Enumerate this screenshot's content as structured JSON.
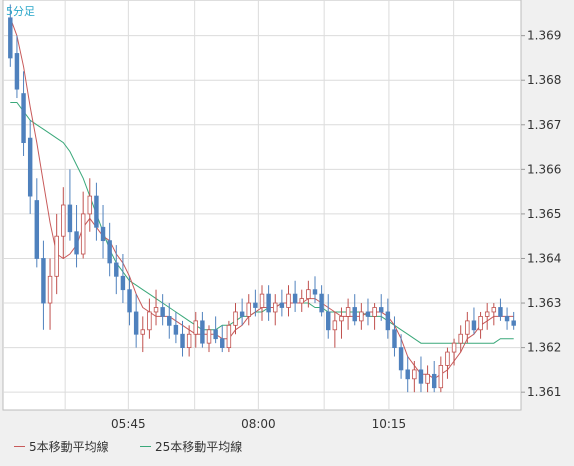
{
  "chart_data": {
    "type": "candlestick",
    "timeframe_label": "5分足",
    "y_ticks": [
      "1.369",
      "1.368",
      "1.367",
      "1.366",
      "1.365",
      "1.364",
      "1.363",
      "1.362",
      "1.361"
    ],
    "y_range": [
      1.3606,
      1.3698
    ],
    "x_ticks": [
      "05:45",
      "08:00",
      "10:15"
    ],
    "grid": true,
    "legend": [
      {
        "label": "5本移動平均線",
        "color": "#c85a5a"
      },
      {
        "label": "25本移動平均線",
        "color": "#3aa87a"
      }
    ],
    "colors": {
      "up": "#ffffff",
      "up_border": "#c0504d",
      "down": "#4f81bd",
      "ma5": "#c85a5a",
      "ma25": "#3aa87a",
      "label": "#2aa7c9"
    },
    "candles": [
      [
        1.3694,
        1.3697,
        1.3683,
        1.3685
      ],
      [
        1.3686,
        1.369,
        1.3676,
        1.3678
      ],
      [
        1.3677,
        1.3682,
        1.3663,
        1.3666
      ],
      [
        1.3667,
        1.3671,
        1.365,
        1.3654
      ],
      [
        1.3653,
        1.3658,
        1.3638,
        1.364
      ],
      [
        1.364,
        1.3644,
        1.3624,
        1.363
      ],
      [
        1.363,
        1.364,
        1.3624,
        1.3636
      ],
      [
        1.3636,
        1.365,
        1.3632,
        1.3645
      ],
      [
        1.3645,
        1.3656,
        1.364,
        1.3652
      ],
      [
        1.3652,
        1.366,
        1.3644,
        1.3646
      ],
      [
        1.3646,
        1.3652,
        1.3638,
        1.3641
      ],
      [
        1.3641,
        1.3655,
        1.364,
        1.365
      ],
      [
        1.365,
        1.3658,
        1.3646,
        1.3654
      ],
      [
        1.3654,
        1.3657,
        1.3644,
        1.3647
      ],
      [
        1.3647,
        1.3652,
        1.364,
        1.3644
      ],
      [
        1.3644,
        1.3648,
        1.3636,
        1.3639
      ],
      [
        1.3639,
        1.3643,
        1.3632,
        1.3636
      ],
      [
        1.3636,
        1.3641,
        1.363,
        1.3633
      ],
      [
        1.3633,
        1.3636,
        1.3625,
        1.3628
      ],
      [
        1.3628,
        1.3632,
        1.362,
        1.3623
      ],
      [
        1.3623,
        1.3627,
        1.3619,
        1.3624
      ],
      [
        1.3624,
        1.3631,
        1.3622,
        1.3628
      ],
      [
        1.3628,
        1.3633,
        1.3625,
        1.3629
      ],
      [
        1.3629,
        1.3632,
        1.3625,
        1.3627
      ],
      [
        1.3627,
        1.363,
        1.3622,
        1.3625
      ],
      [
        1.3625,
        1.3628,
        1.3621,
        1.3623
      ],
      [
        1.3623,
        1.3626,
        1.3618,
        1.362
      ],
      [
        1.362,
        1.3625,
        1.3618,
        1.3623
      ],
      [
        1.3623,
        1.3628,
        1.362,
        1.3626
      ],
      [
        1.3626,
        1.3628,
        1.362,
        1.3621
      ],
      [
        1.3621,
        1.3625,
        1.3619,
        1.3624
      ],
      [
        1.3624,
        1.3627,
        1.3621,
        1.3622
      ],
      [
        1.3622,
        1.3625,
        1.3619,
        1.362
      ],
      [
        1.362,
        1.3626,
        1.3619,
        1.3625
      ],
      [
        1.3625,
        1.363,
        1.3623,
        1.3628
      ],
      [
        1.3628,
        1.3631,
        1.3625,
        1.3627
      ],
      [
        1.3627,
        1.3632,
        1.3625,
        1.363
      ],
      [
        1.363,
        1.3633,
        1.3627,
        1.3629
      ],
      [
        1.3629,
        1.3634,
        1.3626,
        1.3632
      ],
      [
        1.3632,
        1.3634,
        1.3626,
        1.3628
      ],
      [
        1.3628,
        1.3632,
        1.3625,
        1.363
      ],
      [
        1.363,
        1.3633,
        1.3627,
        1.3629
      ],
      [
        1.3629,
        1.3634,
        1.3627,
        1.3632
      ],
      [
        1.3632,
        1.3635,
        1.3628,
        1.363
      ],
      [
        1.363,
        1.3633,
        1.3628,
        1.3631
      ],
      [
        1.3631,
        1.3635,
        1.3629,
        1.3633
      ],
      [
        1.3633,
        1.3636,
        1.363,
        1.3632
      ],
      [
        1.3632,
        1.3634,
        1.3627,
        1.3628
      ],
      [
        1.3628,
        1.3632,
        1.3622,
        1.3624
      ],
      [
        1.3624,
        1.3628,
        1.362,
        1.3626
      ],
      [
        1.3626,
        1.3629,
        1.3622,
        1.3627
      ],
      [
        1.3627,
        1.3631,
        1.3624,
        1.3629
      ],
      [
        1.3629,
        1.3632,
        1.3625,
        1.3626
      ],
      [
        1.3626,
        1.363,
        1.3624,
        1.3628
      ],
      [
        1.3628,
        1.3631,
        1.3625,
        1.3627
      ],
      [
        1.3627,
        1.363,
        1.3624,
        1.3629
      ],
      [
        1.3629,
        1.3632,
        1.3626,
        1.3628
      ],
      [
        1.3628,
        1.3631,
        1.3622,
        1.3624
      ],
      [
        1.3624,
        1.3627,
        1.3618,
        1.362
      ],
      [
        1.362,
        1.3623,
        1.3613,
        1.3615
      ],
      [
        1.3615,
        1.3618,
        1.361,
        1.3613
      ],
      [
        1.3613,
        1.3617,
        1.361,
        1.3615
      ],
      [
        1.3615,
        1.3618,
        1.361,
        1.3612
      ],
      [
        1.3612,
        1.3616,
        1.361,
        1.3614
      ],
      [
        1.3614,
        1.3617,
        1.361,
        1.3611
      ],
      [
        1.3611,
        1.3618,
        1.361,
        1.3616
      ],
      [
        1.3616,
        1.362,
        1.3613,
        1.3619
      ],
      [
        1.3619,
        1.3622,
        1.3616,
        1.3621
      ],
      [
        1.3621,
        1.3625,
        1.3619,
        1.3623
      ],
      [
        1.3623,
        1.3628,
        1.3621,
        1.3626
      ],
      [
        1.3626,
        1.3629,
        1.3623,
        1.3624
      ],
      [
        1.3624,
        1.3628,
        1.3622,
        1.3627
      ],
      [
        1.3627,
        1.363,
        1.3624,
        1.3628
      ],
      [
        1.3628,
        1.363,
        1.3625,
        1.3629
      ],
      [
        1.3629,
        1.3631,
        1.3626,
        1.3627
      ],
      [
        1.3627,
        1.3629,
        1.3624,
        1.3626
      ],
      [
        1.3626,
        1.3628,
        1.3624,
        1.3625
      ]
    ],
    "ma5": [
      1.3694,
      1.369,
      1.3683,
      1.3674,
      1.3666,
      1.3657,
      1.3648,
      1.3641,
      1.364,
      1.3641,
      1.3643,
      1.3647,
      1.3649,
      1.3647,
      1.3645,
      1.3644,
      1.3641,
      1.3639,
      1.3636,
      1.3632,
      1.3629,
      1.3628,
      1.3627,
      1.3627,
      1.3627,
      1.3626,
      1.3625,
      1.3624,
      1.3623,
      1.3623,
      1.3623,
      1.3623,
      1.3622,
      1.3622,
      1.3624,
      1.3625,
      1.3627,
      1.3628,
      1.3629,
      1.3629,
      1.3629,
      1.363,
      1.363,
      1.363,
      1.363,
      1.3631,
      1.3631,
      1.363,
      1.3629,
      1.3628,
      1.3627,
      1.3627,
      1.3627,
      1.3627,
      1.3628,
      1.3628,
      1.3628,
      1.3627,
      1.3625,
      1.3622,
      1.3618,
      1.3616,
      1.3614,
      1.3614,
      1.3613,
      1.3614,
      1.3615,
      1.3617,
      1.3619,
      1.3622,
      1.3623,
      1.3625,
      1.3626,
      1.3627,
      1.3627,
      1.3627,
      1.3627
    ],
    "ma25": [
      1.3675,
      1.3675,
      1.3673,
      1.3671,
      1.367,
      1.3669,
      1.3668,
      1.3667,
      1.3666,
      1.3664,
      1.3661,
      1.3658,
      1.3654,
      1.365,
      1.3646,
      1.3642,
      1.3639,
      1.3637,
      1.3635,
      1.3634,
      1.3633,
      1.3632,
      1.3631,
      1.363,
      1.3629,
      1.3628,
      1.3627,
      1.3626,
      1.3625,
      1.3624,
      1.3624,
      1.3624,
      1.3625,
      1.3625,
      1.3626,
      1.3627,
      1.3627,
      1.3628,
      1.3628,
      1.3629,
      1.3629,
      1.363,
      1.363,
      1.363,
      1.363,
      1.363,
      1.3629,
      1.3629,
      1.3628,
      1.3628,
      1.3628,
      1.3628,
      1.3628,
      1.3628,
      1.3627,
      1.3627,
      1.3627,
      1.3626,
      1.3625,
      1.3624,
      1.3623,
      1.3622,
      1.3621,
      1.3621,
      1.3621,
      1.3621,
      1.3621,
      1.3621,
      1.3621,
      1.3621,
      1.3621,
      1.3621,
      1.3621,
      1.3621,
      1.3622,
      1.3622,
      1.3622
    ]
  }
}
